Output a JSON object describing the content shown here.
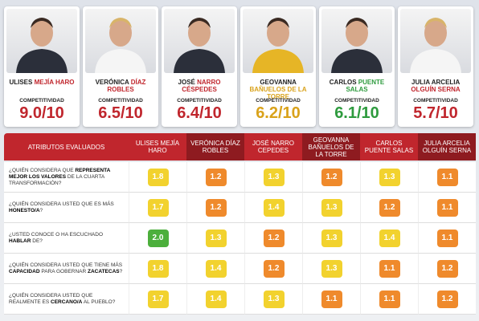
{
  "competitiveness_label": "COMPETITIVIDAD",
  "candidates": [
    {
      "first": "ULISES",
      "last": "MEJÍA HARO",
      "score": "9.0/10",
      "color": "#c0262d"
    },
    {
      "first": "VERÓNICA",
      "last": "DÍAZ ROBLES",
      "score": "6.5/10",
      "color": "#c0262d"
    },
    {
      "first": "JOSÉ",
      "last": "NARRO CÉSPEDES",
      "score": "6.4/10",
      "color": "#c0262d"
    },
    {
      "first": "GEOVANNA",
      "last": "BAÑUELOS DE LA TORRE",
      "score": "6.2/10",
      "color": "#d9a21b"
    },
    {
      "first": "CARLOS",
      "last": "PUENTE SALAS",
      "score": "6.1/10",
      "color": "#2e9b3e"
    },
    {
      "first": "JULIA ARCELIA",
      "last": "OLGUÍN SERNA",
      "score": "5.7/10",
      "color": "#c0262d"
    }
  ],
  "table": {
    "header": "ATRIBUTOS EVALUADOS",
    "columns": [
      "ULISES MEJÍA HARO",
      "VERÓNICA DÍAZ ROBLES",
      "JOSÉ NARRO CEPEDES",
      "GEOVANNA BAÑUELOS DE LA TORRE",
      "CARLOS PUENTE SALAS",
      "JULIA ARCELIA OLGUÍN SERNA"
    ],
    "rows": [
      {
        "question": [
          "¿QUIÉN CONSIDERA QUE ",
          "REPRESENTA MEJOR LOS VALORES",
          " DE LA CUARTA TRANSFORMACIÓN?"
        ],
        "values": [
          "1.8",
          "1.2",
          "1.3",
          "1.2",
          "1.3",
          "1.1"
        ],
        "colors": [
          "#f2d22e",
          "#ef8a2c",
          "#f2d22e",
          "#ef8a2c",
          "#f2d22e",
          "#ef8a2c"
        ]
      },
      {
        "question": [
          "¿QUIÉN CONSIDERA USTED QUE ES MÁS ",
          "HONESTO/A",
          "?"
        ],
        "values": [
          "1.7",
          "1.2",
          "1.4",
          "1.3",
          "1.2",
          "1.1"
        ],
        "colors": [
          "#f2d22e",
          "#ef8a2c",
          "#f2d22e",
          "#f2d22e",
          "#ef8a2c",
          "#ef8a2c"
        ]
      },
      {
        "question": [
          "¿USTED CONOCE O HA ESCUCHADO ",
          "HABLAR",
          " DE?"
        ],
        "values": [
          "2.0",
          "1.3",
          "1.2",
          "1.3",
          "1.4",
          "1.1"
        ],
        "colors": [
          "#4caf3c",
          "#f2d22e",
          "#ef8a2c",
          "#f2d22e",
          "#f2d22e",
          "#ef8a2c"
        ]
      },
      {
        "question": [
          "¿QUIÉN CONSIDERA USTED QUE TIENE MÁS ",
          "CAPACIDAD",
          " PARA GOBERNAR ",
          "ZACATECAS",
          "?"
        ],
        "values": [
          "1.8",
          "1.4",
          "1.2",
          "1.3",
          "1.1",
          "1.2"
        ],
        "colors": [
          "#f2d22e",
          "#f2d22e",
          "#ef8a2c",
          "#f2d22e",
          "#ef8a2c",
          "#ef8a2c"
        ]
      },
      {
        "question": [
          "¿QUIÉN CONSIDERA USTED QUE REALMENTE ES ",
          "CERCANO/A",
          " AL PUEBLO?"
        ],
        "values": [
          "1.7",
          "1.4",
          "1.3",
          "1.1",
          "1.1",
          "1.2"
        ],
        "colors": [
          "#f2d22e",
          "#f2d22e",
          "#f2d22e",
          "#ef8a2c",
          "#ef8a2c",
          "#ef8a2c"
        ]
      }
    ]
  }
}
